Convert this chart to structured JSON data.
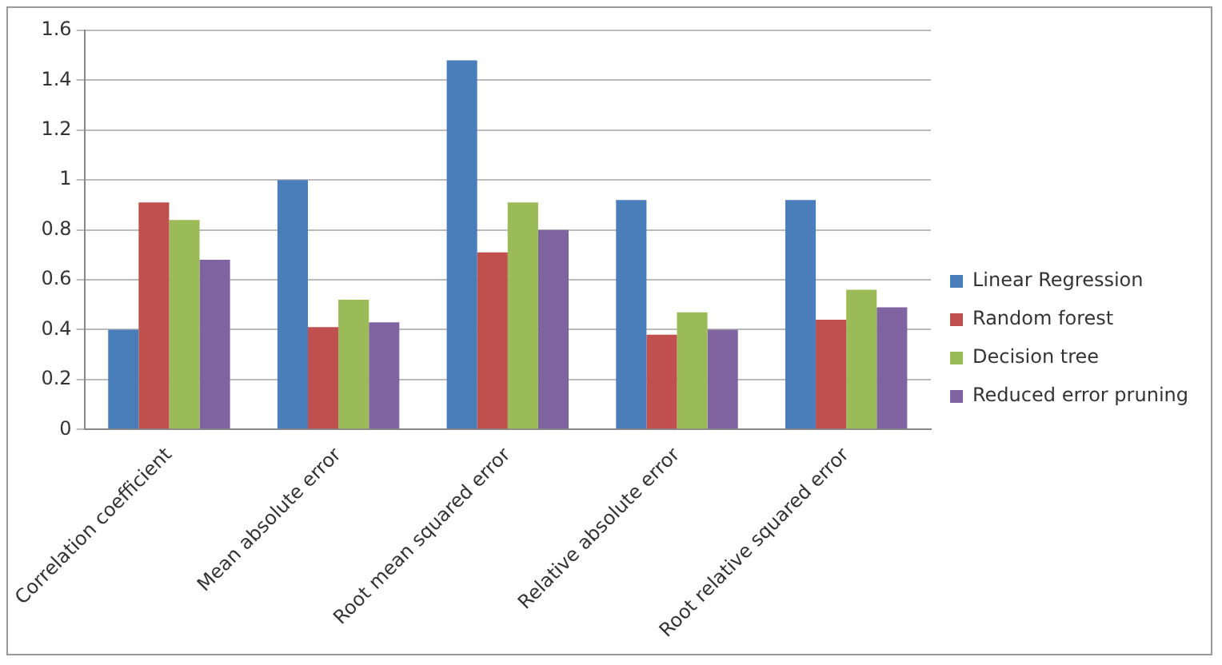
{
  "chart_data": {
    "type": "bar",
    "categories": [
      "Correlation coefficient",
      "Mean absolute error",
      "Root mean squared error",
      "Relative absolute error",
      "Root relative squared error"
    ],
    "series": [
      {
        "name": "Linear Regression",
        "color": "#4a7ebb",
        "values": [
          0.4,
          1.0,
          1.48,
          0.92,
          0.92
        ]
      },
      {
        "name": "Random forest",
        "color": "#c0504d",
        "values": [
          0.91,
          0.41,
          0.71,
          0.38,
          0.44
        ]
      },
      {
        "name": "Decision tree",
        "color": "#9bbb59",
        "values": [
          0.84,
          0.52,
          0.91,
          0.47,
          0.56
        ]
      },
      {
        "name": "Reduced error pruning",
        "color": "#8064a2",
        "values": [
          0.68,
          0.43,
          0.8,
          0.4,
          0.49
        ]
      }
    ],
    "ylim": [
      0,
      1.6
    ],
    "yticks": [
      0,
      0.2,
      0.4,
      0.6,
      0.8,
      1,
      1.2,
      1.4,
      1.6
    ],
    "grid": "y",
    "legend": "right"
  }
}
